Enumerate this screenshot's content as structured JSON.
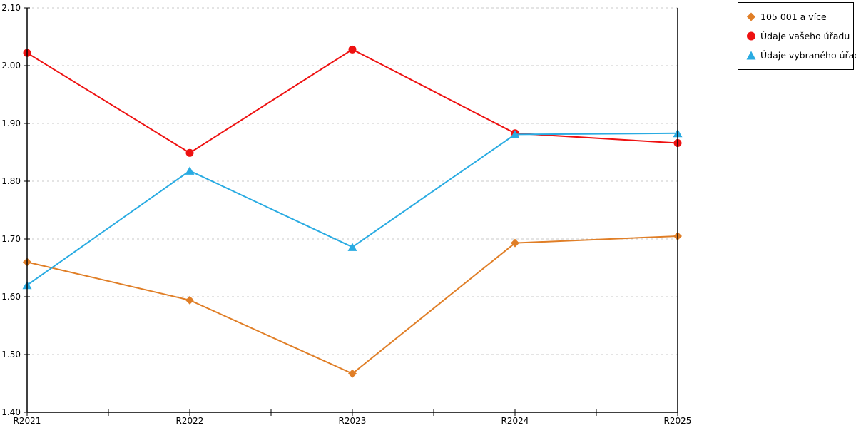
{
  "chart_data": {
    "type": "line",
    "title": "",
    "xlabel": "",
    "ylabel": "",
    "categories": [
      "R2021",
      "R2022",
      "R2023",
      "R2024",
      "R2025"
    ],
    "y_ticks": [
      "2.10",
      "2.00",
      "1.90",
      "1.80",
      "1.70",
      "1.60",
      "1.50",
      "1.40"
    ],
    "ylim": [
      1.4,
      2.1
    ],
    "grid": "horizontal dashed gridlines, solid left/bottom/right axes",
    "legend_position": "top-right outside plot",
    "series": [
      {
        "name": "105 001 a více",
        "color": "#E07E26",
        "marker": "diamond",
        "values": [
          1.66,
          1.594,
          1.467,
          1.693,
          1.705
        ]
      },
      {
        "name": "Údaje vašeho úřadu",
        "color": "#EE1111",
        "marker": "circle",
        "values": [
          2.022,
          1.849,
          2.028,
          1.883,
          1.866
        ]
      },
      {
        "name": "Údaje vybraného úřadu",
        "color": "#29ABE2",
        "marker": "triangle",
        "values": [
          1.62,
          1.818,
          1.686,
          1.881,
          1.883
        ]
      }
    ]
  },
  "colors": {
    "axis": "#000000",
    "grid": "#c8c8c8",
    "background": "#ffffff"
  }
}
